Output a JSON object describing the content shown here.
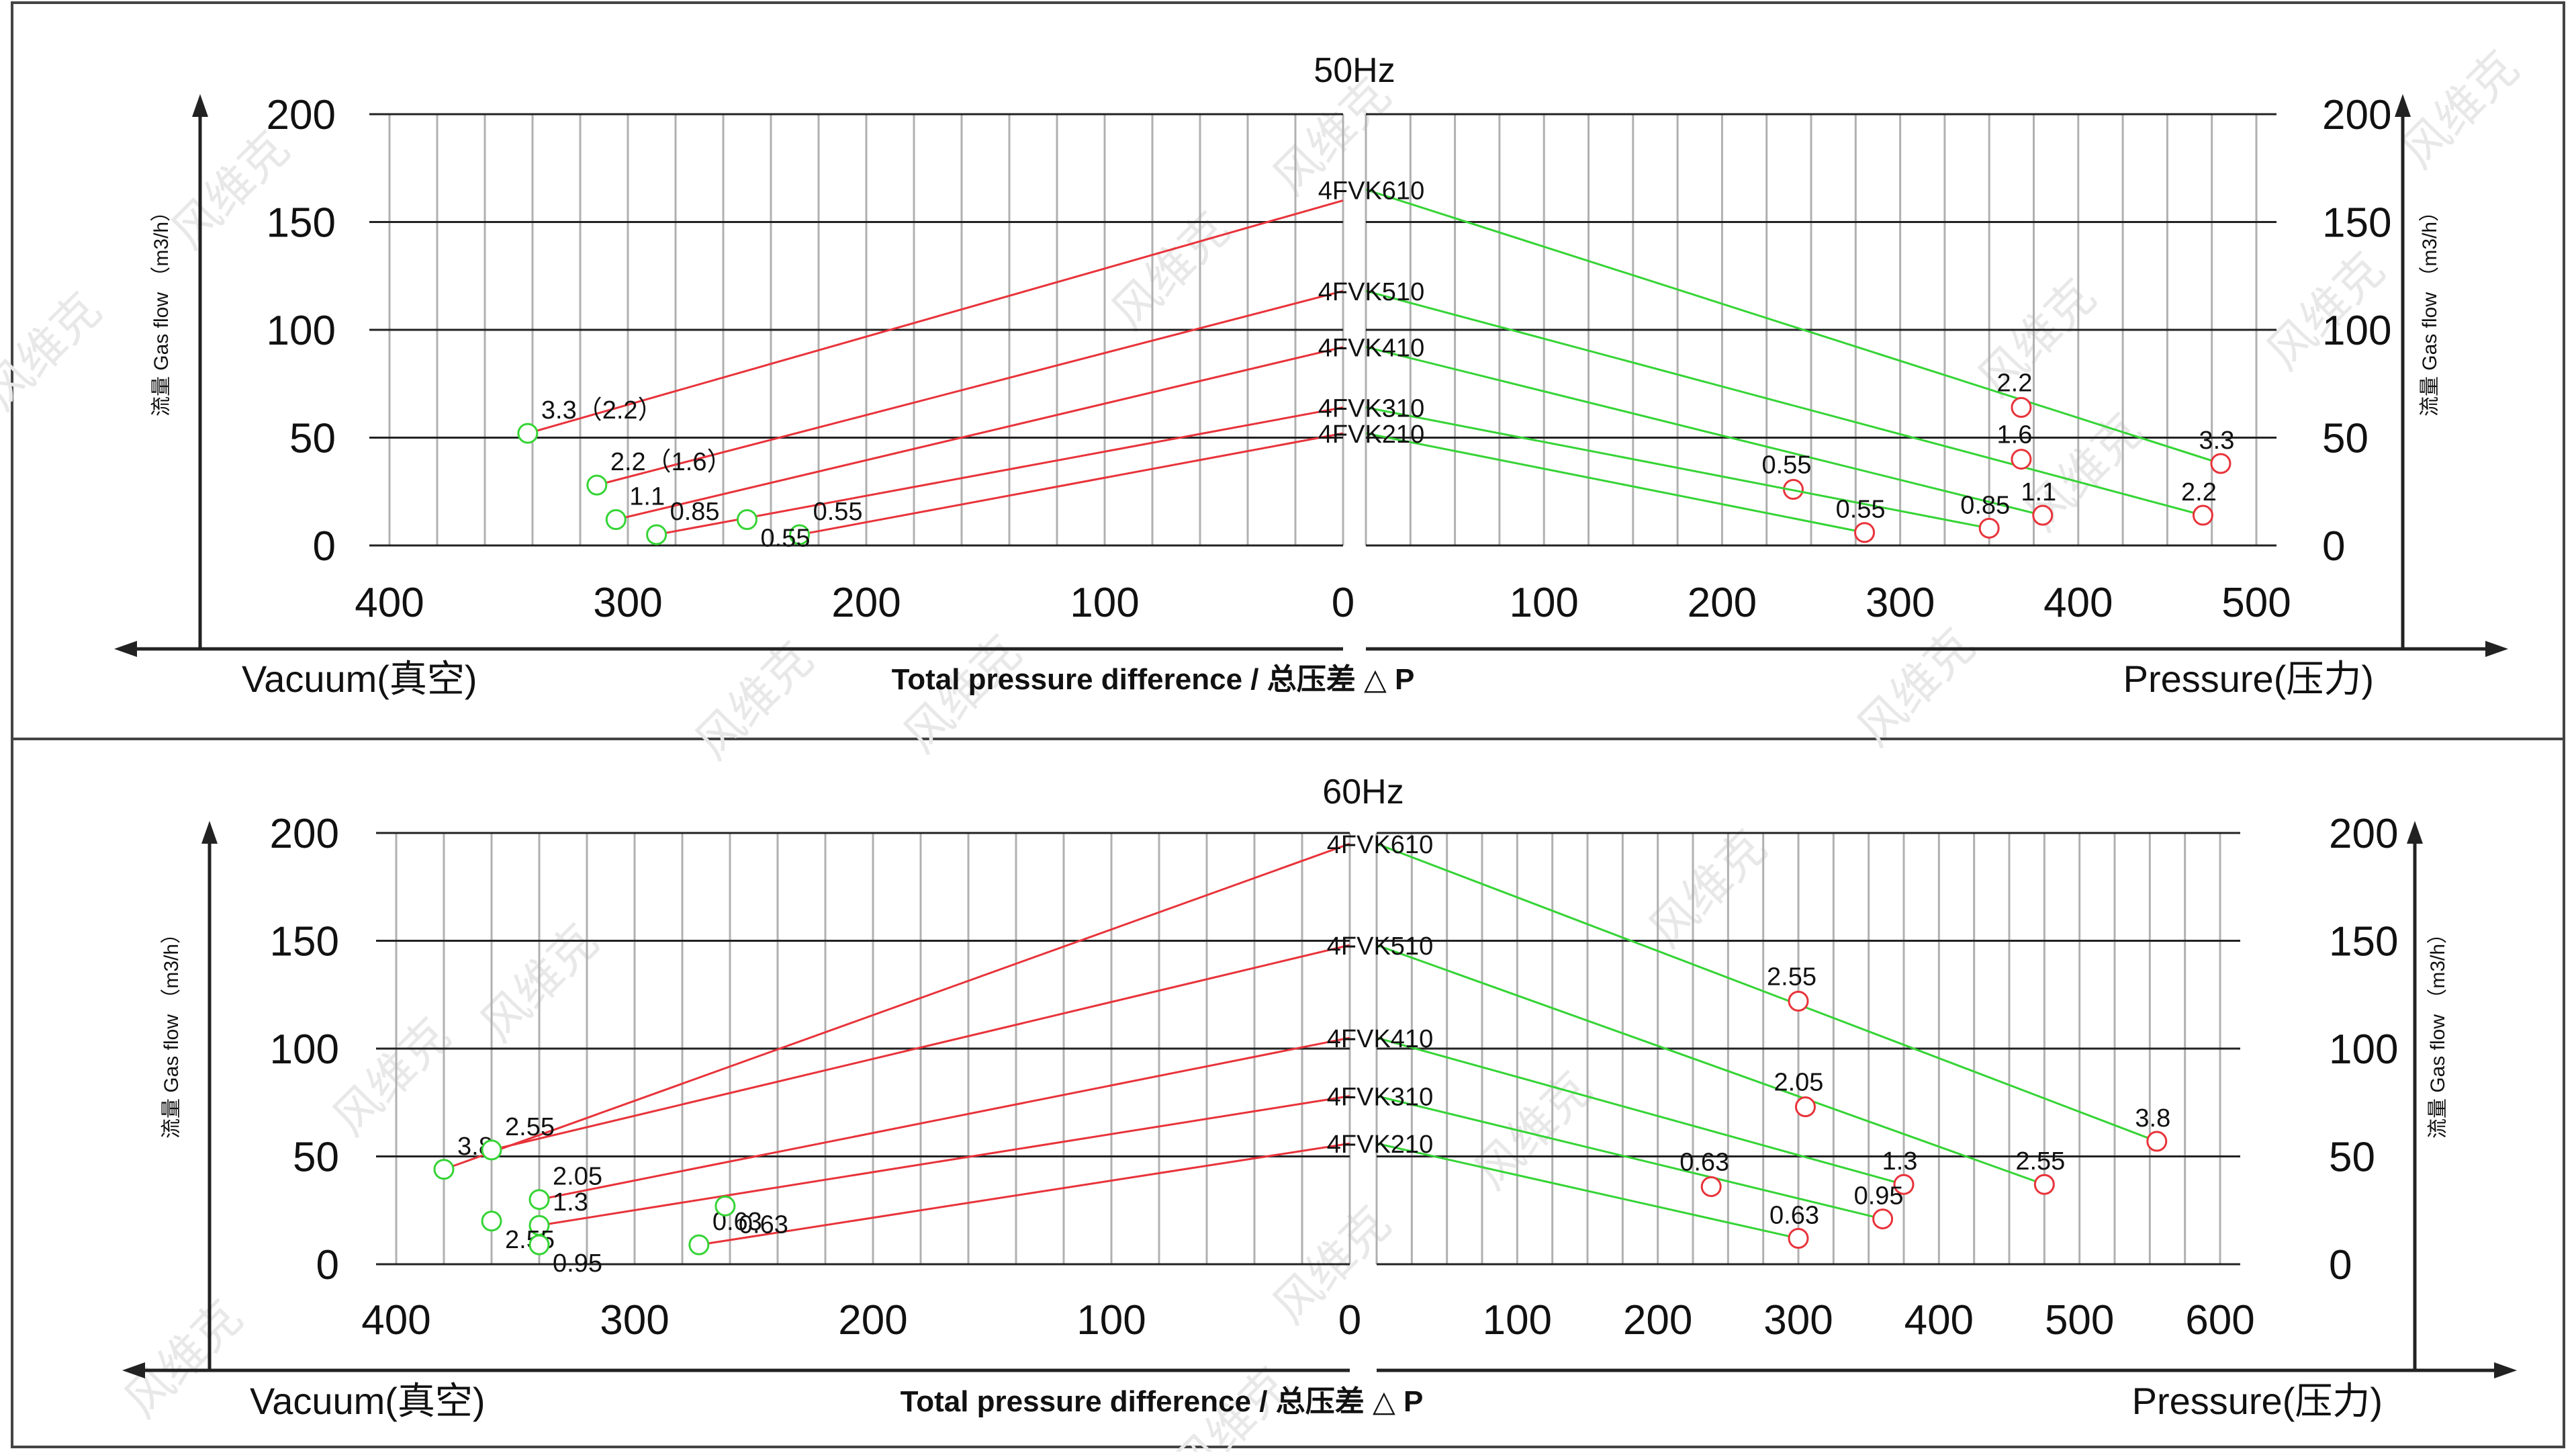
{
  "watermark": "风维克",
  "colors": {
    "vacuum_line": "#e8333a",
    "pressure_line": "#35d435",
    "vacuum_marker": "#35d435",
    "pressure_marker": "#e8333a",
    "grid": "#b0b0b0",
    "axis": "#222222"
  },
  "chart_data": [
    {
      "type": "line",
      "title": "50Hz",
      "ylabel_left": "流量 Gas flow （m3/h）",
      "ylabel_right": "流量 Gas flow （m3/h）",
      "ylim": [
        0,
        200
      ],
      "y_ticks": [
        "200",
        "150",
        "100",
        "50",
        "0"
      ],
      "vacuum_axis": {
        "label": "Vacuum(真空)",
        "range": [
          0,
          400
        ],
        "ticks": [
          "400",
          "300",
          "200",
          "100",
          "0"
        ]
      },
      "pressure_axis": {
        "label": "Pressure(压力)",
        "range": [
          0,
          500
        ],
        "ticks": [
          "100",
          "200",
          "300",
          "400",
          "500"
        ]
      },
      "xlabel": "Total pressure difference / 总压差 △ P",
      "series": [
        {
          "name": "4FVK610",
          "vacuum": [
            [
              0,
              160
            ],
            [
              342,
              52
            ]
          ],
          "vacuum_label": "3.3（2.2）",
          "pressure": [
            [
              0,
              165
            ],
            [
              480,
              38
            ]
          ],
          "pressure_label": "3.3",
          "pressure_extra": [
            [
              368,
              64,
              "2.2"
            ]
          ]
        },
        {
          "name": "4FVK510",
          "vacuum": [
            [
              0,
              118
            ],
            [
              313,
              28
            ]
          ],
          "vacuum_label": "2.2（1.6）",
          "pressure": [
            [
              0,
              118
            ],
            [
              470,
              14
            ]
          ],
          "pressure_label": "2.2",
          "pressure_extra": [
            [
              368,
              40,
              "1.6"
            ]
          ]
        },
        {
          "name": "4FVK410",
          "vacuum": [
            [
              0,
              92
            ],
            [
              305,
              12
            ]
          ],
          "vacuum_label": "1.1",
          "pressure": [
            [
              0,
              92
            ],
            [
              380,
              14
            ]
          ],
          "pressure_label": "1.1",
          "pressure_extra": [
            [
              240,
              26,
              "0.55"
            ]
          ]
        },
        {
          "name": "4FVK310",
          "vacuum": [
            [
              0,
              64
            ],
            [
              288,
              5
            ]
          ],
          "vacuum_label": "0.85",
          "pressure": [
            [
              0,
              64
            ],
            [
              350,
              8
            ]
          ],
          "pressure_label": "0.85",
          "pressure_extra": []
        },
        {
          "name": "4FVK210",
          "vacuum": [
            [
              0,
              52
            ],
            [
              228,
              5
            ]
          ],
          "vacuum_label": "0.55",
          "pressure": [
            [
              0,
              52
            ],
            [
              280,
              6
            ]
          ],
          "pressure_label": "0.55",
          "pressure_extra": []
        }
      ],
      "vacuum_extra": [
        [
          250,
          12,
          "0.55"
        ]
      ]
    },
    {
      "type": "line",
      "title": "60Hz",
      "ylabel_left": "流量 Gas flow （m3/h）",
      "ylabel_right": "流量 Gas flow （m3/h）",
      "ylim": [
        0,
        200
      ],
      "y_ticks": [
        "200",
        "150",
        "100",
        "50",
        "0"
      ],
      "vacuum_axis": {
        "label": "Vacuum(真空)",
        "range": [
          0,
          400
        ],
        "ticks": [
          "400",
          "300",
          "200",
          "100",
          "0"
        ]
      },
      "pressure_axis": {
        "label": "Pressure(压力)",
        "range": [
          0,
          600
        ],
        "ticks": [
          "100",
          "200",
          "300",
          "400",
          "500",
          "600"
        ]
      },
      "xlabel": "Total pressure difference / 总压差 △ P",
      "series": [
        {
          "name": "4FVK610",
          "vacuum": [
            [
              0,
              195
            ],
            [
              380,
              44
            ]
          ],
          "vacuum_label": "3.8",
          "pressure": [
            [
              0,
              195
            ],
            [
              555,
              57
            ]
          ],
          "pressure_label": "3.8",
          "pressure_extra": []
        },
        {
          "name": "4FVK510",
          "vacuum": [
            [
              0,
              148
            ],
            [
              360,
              53
            ]
          ],
          "vacuum_label": "2.55",
          "pressure": [
            [
              0,
              148
            ],
            [
              475,
              37
            ]
          ],
          "pressure_label": "2.55",
          "pressure_extra": [
            [
              300,
              122,
              "2.55"
            ]
          ]
        },
        {
          "name": "4FVK410",
          "vacuum": [
            [
              0,
              105
            ],
            [
              340,
              30
            ]
          ],
          "vacuum_label": "2.05",
          "pressure": [
            [
              0,
              105
            ],
            [
              375,
              37
            ]
          ],
          "pressure_label": "1.3",
          "pressure_extra": [
            [
              305,
              73,
              "2.05"
            ]
          ]
        },
        {
          "name": "4FVK310",
          "vacuum": [
            [
              0,
              78
            ],
            [
              340,
              18
            ]
          ],
          "vacuum_label": "1.3",
          "pressure": [
            [
              0,
              78
            ],
            [
              360,
              21
            ]
          ],
          "pressure_label": "0.95",
          "pressure_extra": [
            [
              238,
              36,
              "0.63"
            ]
          ]
        },
        {
          "name": "4FVK210",
          "vacuum": [
            [
              0,
              56
            ],
            [
              273,
              9
            ]
          ],
          "vacuum_label": "0.63",
          "pressure": [
            [
              0,
              56
            ],
            [
              300,
              12
            ]
          ],
          "pressure_label": "0.63",
          "pressure_extra": []
        }
      ],
      "vacuum_extra": [
        [
          360,
          20,
          "2.55"
        ],
        [
          340,
          9,
          "0.95"
        ],
        [
          262,
          27,
          "0.63"
        ]
      ]
    }
  ]
}
